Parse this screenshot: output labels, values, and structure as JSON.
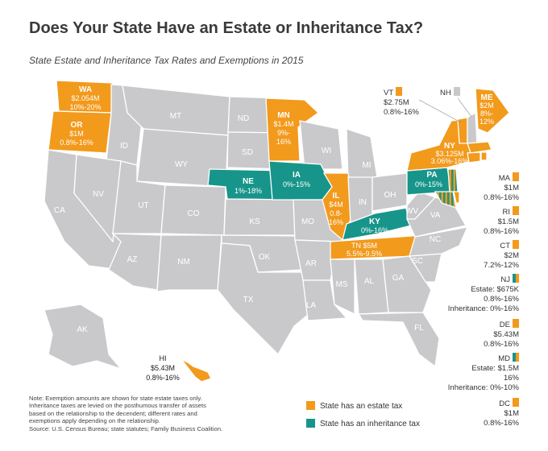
{
  "title": "Does Your State Have an Estate or Inheritance Tax?",
  "subtitle": "State Estate and Inheritance Tax Rates and Exemptions in 2015",
  "colors": {
    "estate": "#f29a1c",
    "inheritance": "#17958a",
    "none": "#c9c9cb"
  },
  "states": {
    "WA": {
      "abbr": "WA",
      "exemption": "$2.054M",
      "rate": "10%-20%"
    },
    "OR": {
      "abbr": "OR",
      "exemption": "$1M",
      "rate": "0.8%-16%"
    },
    "MN": {
      "abbr": "MN",
      "exemption": "$1.4M",
      "rate1": "9%-",
      "rate2": "16%"
    },
    "IL": {
      "abbr": "IL",
      "exemption": "$4M",
      "rate1": "0.8-",
      "rate2": "16%"
    },
    "TN": {
      "abbr": "TN",
      "exemption": "$5M",
      "rate": "5.5%-9.5%"
    },
    "NY": {
      "abbr": "NY",
      "exemption": "$3.125M",
      "rate": "3.06%-16%"
    },
    "ME": {
      "abbr": "ME",
      "exemption": "$2M",
      "rate1": "8%-",
      "rate2": "12%"
    },
    "NE": {
      "abbr": "NE",
      "rate": "1%-18%"
    },
    "IA": {
      "abbr": "IA",
      "rate": "0%-15%"
    },
    "KY": {
      "abbr": "KY",
      "rate": "0%-16%"
    },
    "PA": {
      "abbr": "PA",
      "rate": "0%-15%"
    }
  },
  "gray_labels": [
    "MT",
    "ND",
    "SD",
    "WY",
    "ID",
    "NV",
    "UT",
    "CO",
    "CA",
    "AZ",
    "NM",
    "KS",
    "OK",
    "TX",
    "MO",
    "AR",
    "LA",
    "MS",
    "AL",
    "GA",
    "FL",
    "SC",
    "NC",
    "VA",
    "WV",
    "OH",
    "IN",
    "MI",
    "WI",
    "AK"
  ],
  "side_states": {
    "VT": {
      "abbr": "VT",
      "exemption": "$2.75M",
      "rate": "0.8%-16%"
    },
    "NH": {
      "abbr": "NH"
    },
    "MA": {
      "abbr": "MA",
      "exemption": "$1M",
      "rate": "0.8%-16%"
    },
    "RI": {
      "abbr": "RI",
      "exemption": "$1.5M",
      "rate": "0.8%-16%"
    },
    "CT": {
      "abbr": "CT",
      "exemption": "$2M",
      "rate": "7.2%-12%"
    },
    "NJ": {
      "abbr": "NJ",
      "estate": "Estate: $675K",
      "estate_rate": "0.8%-16%",
      "inheritance": "Inheritance: 0%-16%"
    },
    "DE": {
      "abbr": "DE",
      "exemption": "$5.43M",
      "rate": "0.8%-16%"
    },
    "MD": {
      "abbr": "MD",
      "estate": "Estate: $1.5M",
      "estate_rate": "16%",
      "inheritance": "Inheritance: 0%-10%"
    },
    "DC": {
      "abbr": "DC",
      "exemption": "$1M",
      "rate": "0.8%-16%"
    },
    "HI": {
      "abbr": "HI",
      "exemption": "$5.43M",
      "rate": "0.8%-16%"
    }
  },
  "legend": {
    "estate": "State has an estate tax",
    "inheritance": "State has an inheritance tax"
  },
  "note": {
    "line1": "Note: Exemption amounts are shown for state estate taxes only.",
    "line2": "Inheritance taxes are levied on the posthumous transfer of assets",
    "line3": "based on the relationship to the decendent; different rates and",
    "line4": "exemptions apply depending on the relationship.",
    "line5": "Source: U.S. Census Bureau; state statutes; Family Business Coalition."
  }
}
